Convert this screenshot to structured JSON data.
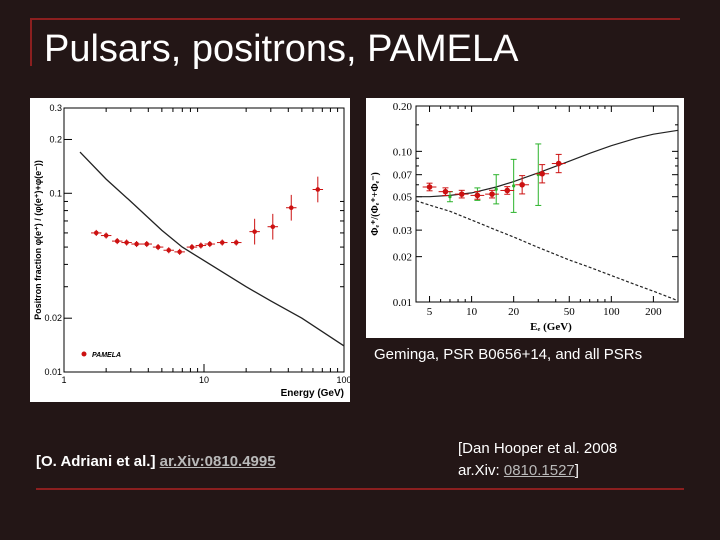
{
  "slide": {
    "title": "Pulsars, positrons, PAMELA",
    "caption_right": "Geminga, PSR B0656+14, and all PSRs",
    "ref_left": {
      "prefix": "[O. Adriani et al.]",
      "link": "ar.Xiv:0810.4995"
    },
    "ref_right": {
      "line1": "[Dan Hooper et al. 2008",
      "line2_prefix": "ar.Xiv: ",
      "link": "0810.1527",
      "line2_suffix": "]"
    },
    "colors": {
      "background": "#231616",
      "accent": "#8b1f1f",
      "marker": "#cc1111",
      "green": "#2bb32b"
    }
  },
  "chart_data": [
    {
      "type": "scatter",
      "xlabel": "Energy (GeV)",
      "ylabel": "Positron fraction  φ(e⁺) / (φ(e⁺)+φ(e⁻))",
      "x_scale": "log",
      "y_scale": "log",
      "xlim": [
        1,
        100
      ],
      "ylim": [
        0.01,
        0.3
      ],
      "x_ticks": [
        "1",
        "10",
        "100"
      ],
      "y_ticks": [
        "0.01",
        "0.02",
        "0.1",
        "0.2",
        "0.3"
      ],
      "legend": "bottom-left",
      "series": [
        {
          "name": "PAMELA",
          "x": [
            1.7,
            2.0,
            2.4,
            2.8,
            3.3,
            3.9,
            4.7,
            5.6,
            6.7,
            8.2,
            9.5,
            11.0,
            13.5,
            17.0,
            23.0,
            31.0,
            42.0,
            65.0
          ],
          "y": [
            0.06,
            0.058,
            0.054,
            0.053,
            0.052,
            0.052,
            0.05,
            0.048,
            0.047,
            0.05,
            0.051,
            0.052,
            0.053,
            0.053,
            0.061,
            0.065,
            0.083,
            0.105
          ]
        },
        {
          "x": [
            1.3,
            2,
            3,
            5,
            7,
            10,
            20,
            30,
            50,
            100
          ],
          "y": [
            0.17,
            0.12,
            0.09,
            0.062,
            0.05,
            0.042,
            0.03,
            0.025,
            0.02,
            0.014
          ]
        }
      ]
    },
    {
      "type": "scatter",
      "xlabel": "Eₑ (GeV)",
      "ylabel": "Φₑ⁺/(Φₑ⁺+Φₑ⁻)",
      "x_scale": "log",
      "y_scale": "log",
      "xlim": [
        4,
        300
      ],
      "ylim": [
        0.01,
        0.2
      ],
      "x_ticks": [
        "5",
        "10",
        "20",
        "50",
        "100",
        "200"
      ],
      "y_ticks": [
        "0.01",
        "0.02",
        "0.03",
        "0.05",
        "0.07",
        "0.10",
        "0.20"
      ],
      "series": [
        {
          "x": [
            5,
            6.5,
            8.5,
            11,
            14,
            18,
            23,
            32,
            42
          ],
          "y": [
            0.058,
            0.054,
            0.052,
            0.051,
            0.052,
            0.055,
            0.06,
            0.071,
            0.083
          ]
        },
        {
          "x": [
            7,
            11,
            15,
            20,
            30
          ],
          "y": [
            0.05,
            0.052,
            0.056,
            0.059,
            0.07
          ]
        },
        {
          "x": [
            4,
            5,
            7,
            10,
            15,
            20,
            30,
            50,
            70,
            100,
            150,
            200,
            300
          ],
          "y": [
            0.05,
            0.05,
            0.051,
            0.053,
            0.058,
            0.063,
            0.072,
            0.086,
            0.097,
            0.109,
            0.122,
            0.13,
            0.138
          ]
        },
        {
          "x": [
            4,
            5,
            7,
            10,
            15,
            20,
            30,
            50,
            70,
            100,
            150,
            200,
            300
          ],
          "y": [
            0.047,
            0.044,
            0.04,
            0.035,
            0.03,
            0.027,
            0.023,
            0.019,
            0.017,
            0.015,
            0.013,
            0.0118,
            0.0102
          ]
        }
      ]
    }
  ]
}
